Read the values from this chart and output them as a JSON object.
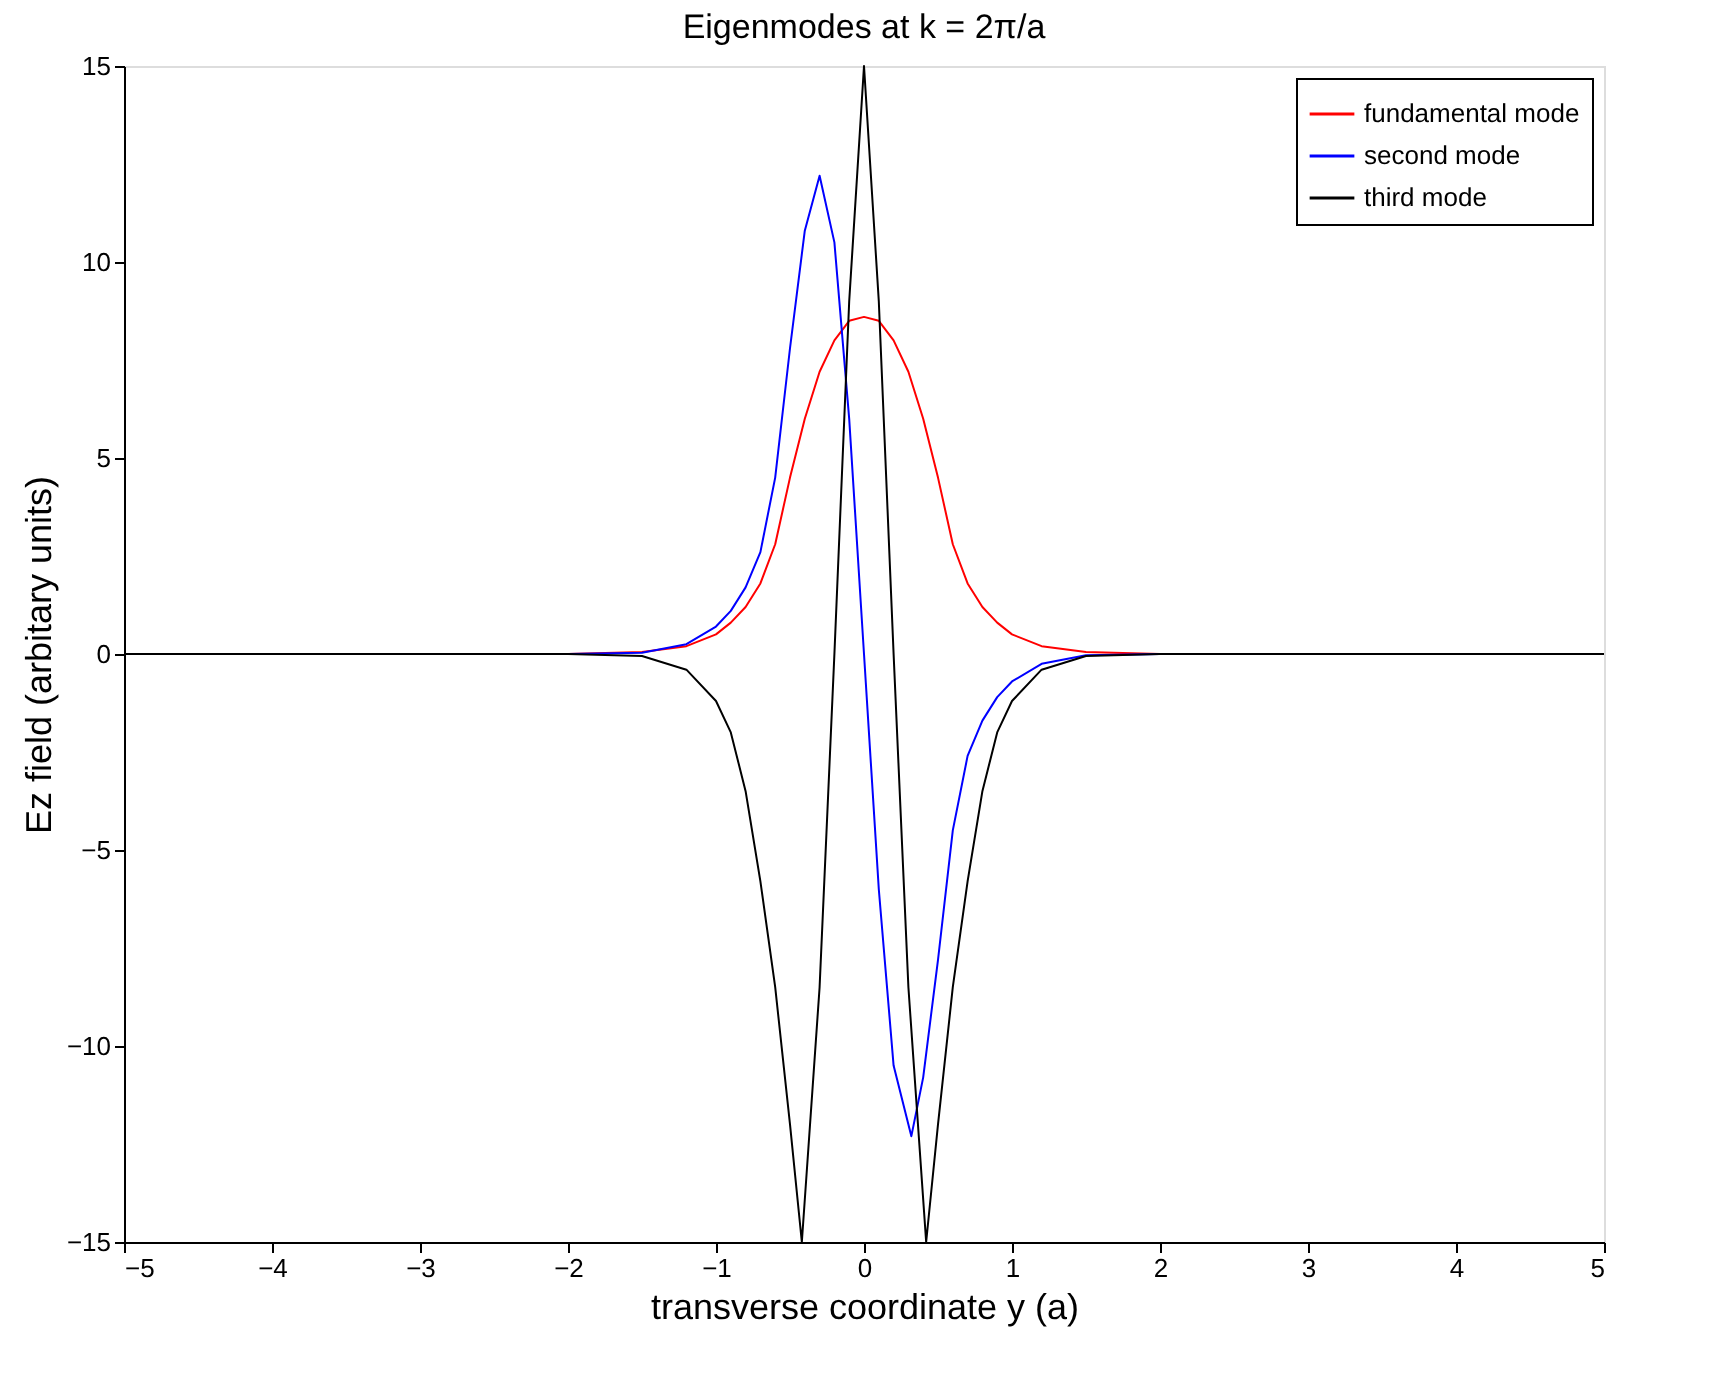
{
  "chart_data": {
    "type": "line",
    "title": "Eigenmodes at k = 2π/a",
    "xlabel": "transverse coordinate y (a)",
    "ylabel": "Ez field (arbitary units)",
    "xlim": [
      -5,
      5
    ],
    "ylim": [
      -15,
      15
    ],
    "xticks": [
      -5,
      -4,
      -3,
      -2,
      -1,
      0,
      1,
      2,
      3,
      4,
      5
    ],
    "yticks": [
      -15,
      -10,
      -5,
      0,
      5,
      10,
      15
    ],
    "grid": false,
    "legend": "top right",
    "marker": "none",
    "line_style": "solid",
    "series": [
      {
        "name": "fundamental mode",
        "color": "#ff0000",
        "x": [
          -5,
          -2,
          -1.5,
          -1.2,
          -1.0,
          -0.9,
          -0.8,
          -0.7,
          -0.6,
          -0.5,
          -0.4,
          -0.3,
          -0.2,
          -0.1,
          0,
          0.1,
          0.2,
          0.3,
          0.4,
          0.5,
          0.6,
          0.7,
          0.8,
          0.9,
          1.0,
          1.2,
          1.5,
          2,
          5
        ],
        "values": [
          0,
          0,
          0.05,
          0.2,
          0.5,
          0.8,
          1.2,
          1.8,
          2.8,
          4.5,
          6.0,
          7.2,
          8.0,
          8.5,
          8.6,
          8.5,
          8.0,
          7.2,
          6.0,
          4.5,
          2.8,
          1.8,
          1.2,
          0.8,
          0.5,
          0.2,
          0.05,
          0,
          0
        ]
      },
      {
        "name": "second mode",
        "color": "#0000ff",
        "x": [
          -5,
          -2,
          -1.5,
          -1.2,
          -1.0,
          -0.9,
          -0.8,
          -0.7,
          -0.6,
          -0.5,
          -0.4,
          -0.3,
          -0.2,
          -0.1,
          0,
          0.1,
          0.2,
          0.32,
          0.4,
          0.5,
          0.6,
          0.7,
          0.8,
          0.9,
          1.0,
          1.2,
          1.5,
          2,
          5
        ],
        "values": [
          0,
          0,
          0.03,
          0.25,
          0.7,
          1.1,
          1.7,
          2.6,
          4.5,
          7.8,
          10.8,
          12.2,
          10.5,
          6.0,
          0,
          -6.0,
          -10.5,
          -12.3,
          -10.8,
          -7.8,
          -4.5,
          -2.6,
          -1.7,
          -1.1,
          -0.7,
          -0.25,
          -0.03,
          0,
          0
        ]
      },
      {
        "name": "third mode",
        "color": "#000000",
        "x": [
          -5,
          -2,
          -1.5,
          -1.2,
          -1.0,
          -0.9,
          -0.8,
          -0.7,
          -0.6,
          -0.5,
          -0.42,
          -0.3,
          -0.2,
          -0.1,
          0,
          0.1,
          0.2,
          0.3,
          0.42,
          0.5,
          0.6,
          0.7,
          0.8,
          0.9,
          1.0,
          1.2,
          1.5,
          2,
          5
        ],
        "values": [
          0,
          0,
          -0.05,
          -0.4,
          -1.2,
          -2.0,
          -3.5,
          -5.8,
          -8.5,
          -12,
          -15,
          -8.5,
          0,
          9,
          15,
          9,
          0,
          -8.5,
          -15,
          -12,
          -8.5,
          -5.8,
          -3.5,
          -2.0,
          -1.2,
          -0.4,
          -0.05,
          0,
          0
        ]
      }
    ]
  }
}
